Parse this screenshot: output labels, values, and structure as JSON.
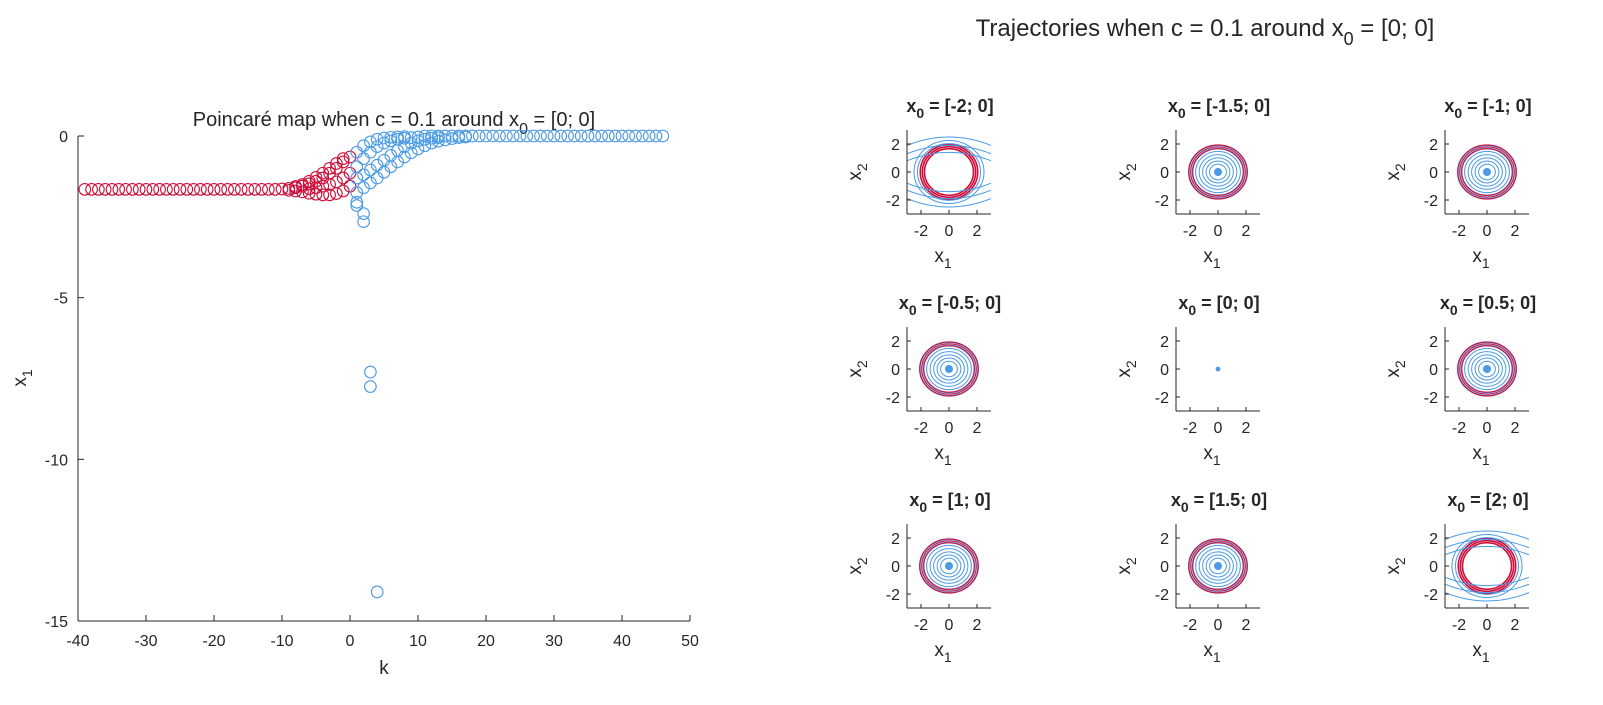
{
  "figure_title": {
    "prefix": "Trajectories when c = 0.1 around  x",
    "sub": "0",
    "suffix": " = [0; 0]"
  },
  "colors": {
    "blue": "#4a9ae6",
    "red": "#cc0e3a",
    "axis": "#262626"
  },
  "chart_data": [
    {
      "type": "scatter",
      "title": {
        "prefix": "Poincaré map when c = 0.1 around  x",
        "sub": "0",
        "suffix": " = [0; 0]"
      },
      "xlabel": "k",
      "ylabel": {
        "base": "x",
        "sub": "1"
      },
      "xlim": [
        -40,
        50
      ],
      "ylim": [
        -15,
        0
      ],
      "xticks": [
        "-40",
        "-30",
        "-20",
        "-10",
        "0",
        "10",
        "20",
        "30",
        "40",
        "50"
      ],
      "yticks": [
        "-15",
        "-10",
        "-5",
        "0"
      ],
      "marker": "open-circle",
      "grid": false,
      "series": [
        {
          "color": "red",
          "description": "backward iterates (k < 0)",
          "points": [
            [
              -39,
              -1.65
            ],
            [
              -38,
              -1.65
            ],
            [
              -37,
              -1.65
            ],
            [
              -36,
              -1.65
            ],
            [
              -35,
              -1.65
            ],
            [
              -34,
              -1.65
            ],
            [
              -33,
              -1.65
            ],
            [
              -32,
              -1.65
            ],
            [
              -31,
              -1.65
            ],
            [
              -30,
              -1.65
            ],
            [
              -29,
              -1.65
            ],
            [
              -28,
              -1.65
            ],
            [
              -27,
              -1.65
            ],
            [
              -26,
              -1.65
            ],
            [
              -25,
              -1.65
            ],
            [
              -24,
              -1.65
            ],
            [
              -23,
              -1.65
            ],
            [
              -22,
              -1.65
            ],
            [
              -21,
              -1.65
            ],
            [
              -20,
              -1.65
            ],
            [
              -19,
              -1.65
            ],
            [
              -18,
              -1.65
            ],
            [
              -17,
              -1.65
            ],
            [
              -16,
              -1.65
            ],
            [
              -15,
              -1.65
            ],
            [
              -14,
              -1.65
            ],
            [
              -13,
              -1.65
            ],
            [
              -12,
              -1.65
            ],
            [
              -11,
              -1.65
            ],
            [
              -10,
              -1.64
            ],
            [
              -9,
              -1.62
            ],
            [
              -8,
              -1.6
            ],
            [
              -7,
              -1.55
            ],
            [
              -6,
              -1.48
            ],
            [
              -5,
              -1.4
            ],
            [
              -4,
              -1.3
            ],
            [
              -3,
              -1.15
            ],
            [
              -2,
              -1.0
            ],
            [
              -1,
              -0.8
            ],
            [
              0,
              -0.65
            ],
            [
              -9,
              -1.68
            ],
            [
              -8,
              -1.7
            ],
            [
              -7,
              -1.73
            ],
            [
              -6,
              -1.77
            ],
            [
              -5,
              -1.8
            ],
            [
              -4,
              -1.82
            ],
            [
              -3,
              -1.82
            ],
            [
              -2,
              -1.78
            ],
            [
              -1,
              -1.7
            ],
            [
              0,
              -1.55
            ],
            [
              -8,
              -1.56
            ],
            [
              -7,
              -1.5
            ],
            [
              -6,
              -1.4
            ],
            [
              -5,
              -1.28
            ],
            [
              -4,
              -1.15
            ],
            [
              -3,
              -1.0
            ],
            [
              -2,
              -0.85
            ],
            [
              -1,
              -0.7
            ],
            [
              -6,
              -1.63
            ],
            [
              -5,
              -1.6
            ],
            [
              -4,
              -1.55
            ],
            [
              -3,
              -1.5
            ],
            [
              -2,
              -1.42
            ],
            [
              -1,
              -1.3
            ],
            [
              0,
              -1.15
            ]
          ]
        },
        {
          "color": "blue",
          "description": "forward iterates (k > 0)",
          "points": [
            [
              1,
              -0.95
            ],
            [
              2,
              -0.7
            ],
            [
              3,
              -0.5
            ],
            [
              4,
              -0.33
            ],
            [
              5,
              -0.22
            ],
            [
              6,
              -0.15
            ],
            [
              7,
              -0.1
            ],
            [
              8,
              -0.07
            ],
            [
              9,
              -0.05
            ],
            [
              10,
              -0.03
            ],
            [
              1,
              -0.5
            ],
            [
              2,
              -0.3
            ],
            [
              3,
              -0.18
            ],
            [
              4,
              -0.1
            ],
            [
              5,
              -0.06
            ],
            [
              6,
              -0.04
            ],
            [
              7,
              -0.03
            ],
            [
              8,
              -0.02
            ],
            [
              1,
              -1.3
            ],
            [
              2,
              -1.2
            ],
            [
              3,
              -1.05
            ],
            [
              4,
              -0.9
            ],
            [
              5,
              -0.75
            ],
            [
              6,
              -0.6
            ],
            [
              7,
              -0.45
            ],
            [
              8,
              -0.33
            ],
            [
              9,
              -0.22
            ],
            [
              10,
              -0.15
            ],
            [
              11,
              -0.1
            ],
            [
              12,
              -0.07
            ],
            [
              13,
              -0.05
            ],
            [
              1,
              -1.75
            ],
            [
              2,
              -1.6
            ],
            [
              3,
              -1.45
            ],
            [
              4,
              -1.3
            ],
            [
              5,
              -1.12
            ],
            [
              6,
              -0.95
            ],
            [
              7,
              -0.8
            ],
            [
              8,
              -0.65
            ],
            [
              9,
              -0.52
            ],
            [
              10,
              -0.4
            ],
            [
              11,
              -0.3
            ],
            [
              12,
              -0.22
            ],
            [
              13,
              -0.16
            ],
            [
              14,
              -0.12
            ],
            [
              15,
              -0.08
            ],
            [
              16,
              -0.05
            ],
            [
              17,
              -0.03
            ],
            [
              1,
              -2.05
            ],
            [
              1,
              -2.15
            ],
            [
              2,
              -2.4
            ],
            [
              2,
              -2.65
            ],
            [
              3,
              -7.3
            ],
            [
              3,
              -7.75
            ],
            [
              4,
              -14.1
            ],
            [
              11,
              0
            ],
            [
              12,
              0
            ],
            [
              13,
              0
            ],
            [
              14,
              0
            ],
            [
              15,
              0
            ],
            [
              16,
              0
            ],
            [
              17,
              0
            ],
            [
              18,
              0
            ],
            [
              19,
              0
            ],
            [
              20,
              0
            ],
            [
              21,
              0
            ],
            [
              22,
              0
            ],
            [
              23,
              0
            ],
            [
              24,
              0
            ],
            [
              25,
              0
            ],
            [
              26,
              0
            ],
            [
              27,
              0
            ],
            [
              28,
              0
            ],
            [
              29,
              0
            ],
            [
              30,
              0
            ],
            [
              31,
              0
            ],
            [
              32,
              0
            ],
            [
              33,
              0
            ],
            [
              34,
              0
            ],
            [
              35,
              0
            ],
            [
              36,
              0
            ],
            [
              37,
              0
            ],
            [
              38,
              0
            ],
            [
              39,
              0
            ],
            [
              40,
              0
            ],
            [
              41,
              0
            ],
            [
              42,
              0
            ],
            [
              43,
              0
            ],
            [
              44,
              0
            ],
            [
              45,
              0
            ],
            [
              46,
              0
            ]
          ]
        }
      ]
    },
    {
      "type": "phase-portrait-grid",
      "rows": 3,
      "cols": 3,
      "xlabel": {
        "base": "x",
        "sub": "1"
      },
      "ylabel": {
        "base": "x",
        "sub": "2"
      },
      "xticks": [
        "-2",
        "0",
        "2"
      ],
      "yticks": [
        "-2",
        "0",
        "2"
      ],
      "xlim": [
        -3,
        3
      ],
      "ylim": [
        -3,
        3
      ],
      "panels": [
        {
          "title": {
            "base": "x",
            "sub": "0",
            "suffix": " = [-2; 0]"
          },
          "x0": -2,
          "style": "outer"
        },
        {
          "title": {
            "base": "x",
            "sub": "0",
            "suffix": " = [-1.5; 0]"
          },
          "x0": -1.5,
          "style": "inner"
        },
        {
          "title": {
            "base": "x",
            "sub": "0",
            "suffix": " = [-1; 0]"
          },
          "x0": -1,
          "style": "inner"
        },
        {
          "title": {
            "base": "x",
            "sub": "0",
            "suffix": " = [-0.5; 0]"
          },
          "x0": -0.5,
          "style": "inner"
        },
        {
          "title": {
            "base": "x",
            "sub": "0",
            "suffix": " = [0; 0]"
          },
          "x0": 0,
          "style": "point"
        },
        {
          "title": {
            "base": "x",
            "sub": "0",
            "suffix": " = [0.5; 0]"
          },
          "x0": 0.5,
          "style": "inner"
        },
        {
          "title": {
            "base": "x",
            "sub": "0",
            "suffix": " = [1; 0]"
          },
          "x0": 1,
          "style": "inner"
        },
        {
          "title": {
            "base": "x",
            "sub": "0",
            "suffix": " = [1.5; 0]"
          },
          "x0": 1.5,
          "style": "inner"
        },
        {
          "title": {
            "base": "x",
            "sub": "0",
            "suffix": " = [2; 0]"
          },
          "x0": 2,
          "style": "outer"
        }
      ]
    }
  ]
}
